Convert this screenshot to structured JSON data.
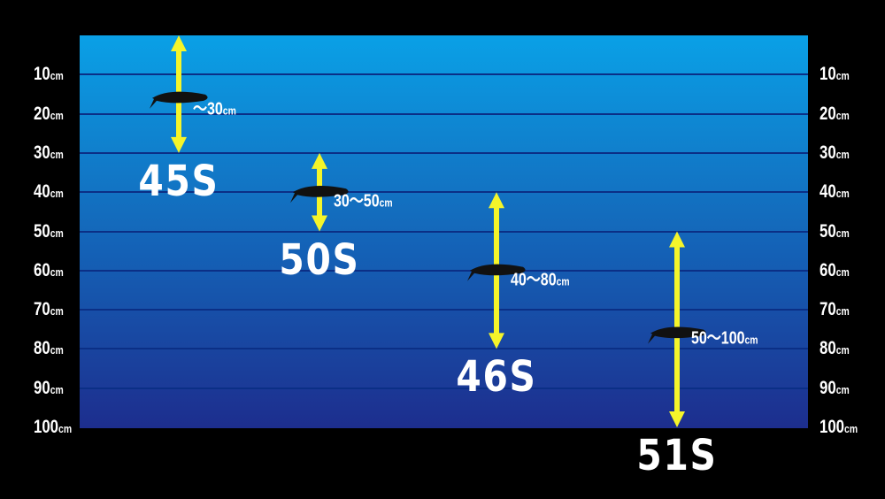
{
  "depth_scale": {
    "unit": "cm",
    "ticks": [
      10,
      20,
      30,
      40,
      50,
      60,
      70,
      80,
      90,
      100
    ],
    "max": 100
  },
  "colors": {
    "top": "#0aa0e6",
    "bottom": "#1b3896",
    "arrow": "#f5f52a",
    "text": "#ffffff",
    "fish": "#111111"
  },
  "lures": [
    {
      "model": "45S",
      "range_label": "～30",
      "unit": "cm",
      "min": 0,
      "max": 30,
      "fish_depth": 16
    },
    {
      "model": "50S",
      "range_label": "30～50",
      "unit": "cm",
      "min": 30,
      "max": 50,
      "fish_depth": 40
    },
    {
      "model": "46S",
      "range_label": "40～80",
      "unit": "cm",
      "min": 40,
      "max": 80,
      "fish_depth": 60
    },
    {
      "model": "51S",
      "range_label": "50～100",
      "unit": "cm",
      "min": 50,
      "max": 100,
      "fish_depth": 76
    }
  ]
}
